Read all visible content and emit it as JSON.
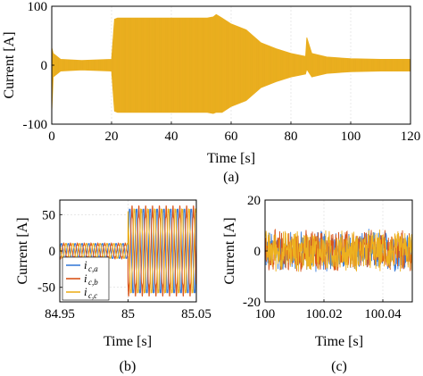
{
  "colors": {
    "phase_a": "#3b7dd8",
    "phase_b": "#d95319",
    "phase_c": "#edb120",
    "envelope": "#edb120"
  },
  "chart_data": [
    {
      "id": "a",
      "type": "area",
      "caption": "(a)",
      "xlabel": "Time [s]",
      "ylabel": "Current [A]",
      "xlim": [
        0,
        120
      ],
      "ylim": [
        -100,
        100
      ],
      "xticks": [
        "0",
        "20",
        "40",
        "60",
        "80",
        "100",
        "120"
      ],
      "yticks": [
        "-100",
        "0",
        "100"
      ],
      "grid": true,
      "series": [
        {
          "color": "#edb120",
          "x": [
            0,
            0.5,
            3,
            10,
            20,
            21,
            22,
            40,
            52,
            54,
            55,
            57,
            60,
            65,
            70,
            75,
            80,
            84.9,
            85.3,
            87,
            92,
            100,
            110,
            120
          ],
          "upper": [
            30,
            20,
            10,
            8,
            10,
            78,
            80,
            80,
            80,
            82,
            86,
            80,
            70,
            60,
            38,
            28,
            20,
            15,
            47,
            20,
            14,
            11,
            10,
            10
          ],
          "lower": [
            -80,
            -20,
            -10,
            -8,
            -10,
            -78,
            -80,
            -80,
            -80,
            -82,
            -80,
            -80,
            -70,
            -60,
            -38,
            -28,
            -20,
            -15,
            -7,
            -20,
            -14,
            -11,
            -10,
            -10
          ]
        }
      ]
    },
    {
      "id": "b",
      "type": "line",
      "caption": "(b)",
      "xlabel": "Time [s]",
      "ylabel": "Current [A]",
      "xlim": [
        84.95,
        85.05
      ],
      "ylim": [
        -70,
        70
      ],
      "xticks": [
        "84.95",
        "85",
        "85.05"
      ],
      "yticks": [
        "-50",
        "0",
        "50"
      ],
      "grid": true,
      "legend_position": "bottom-left",
      "legend": [
        {
          "main": "i",
          "sub": "c,a",
          "color": "#3b7dd8"
        },
        {
          "main": "i",
          "sub": "c,b",
          "color": "#d95319"
        },
        {
          "main": "i",
          "sub": "c,c",
          "color": "#edb120"
        }
      ],
      "waveform": {
        "frequency_hz": 200,
        "step_time": 85.0,
        "amplitude_before": 10,
        "amplitude_after": 58,
        "phases_deg": [
          0,
          -120,
          120
        ]
      }
    },
    {
      "id": "c",
      "type": "line",
      "caption": "(c)",
      "xlabel": "Time [s]",
      "ylabel": "Current [A]",
      "xlim": [
        100,
        100.05
      ],
      "ylim": [
        -20,
        20
      ],
      "xticks": [
        "100",
        "100.02",
        "100.04"
      ],
      "yticks": [
        "-20",
        "0",
        "20"
      ],
      "grid": true,
      "waveform": {
        "noise_amplitude": 9,
        "offset": 0,
        "series_colors": [
          "#3b7dd8",
          "#d95319",
          "#edb120"
        ]
      }
    }
  ]
}
